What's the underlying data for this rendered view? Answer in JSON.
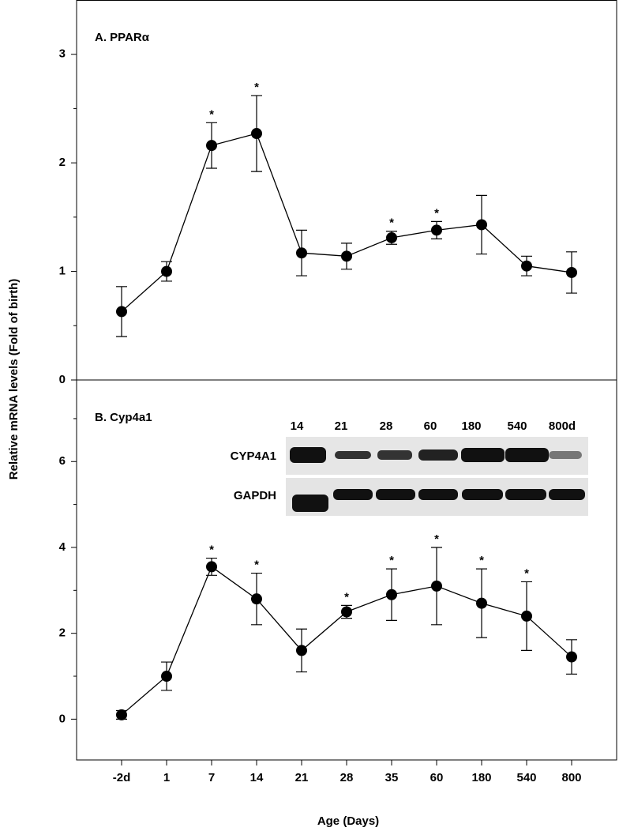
{
  "chart_data": [
    {
      "type": "line",
      "title": "A. PPARα",
      "ylabel": "Relative mRNA levels (Fold of birth)",
      "ylim": [
        0,
        3.5
      ],
      "yticks": [
        0,
        1,
        2,
        3
      ],
      "yminor": [
        0.5,
        1.5,
        2.5
      ],
      "series": [
        {
          "color": "#000000",
          "values": [
            0.63,
            1.0,
            2.16,
            2.27,
            1.17,
            1.14,
            1.31,
            1.38,
            1.43,
            1.05,
            0.99
          ],
          "errors": [
            0.23,
            0.09,
            0.21,
            0.35,
            0.21,
            0.12,
            0.06,
            0.08,
            0.27,
            0.09,
            0.19
          ],
          "labels": [
            null,
            null,
            "*",
            "*",
            null,
            null,
            "*",
            "*",
            null,
            null,
            null
          ]
        }
      ]
    },
    {
      "type": "line",
      "title": "B. Cyp4a1",
      "xlabel": "Age (Days)",
      "categories": [
        "-2d",
        "1",
        "7",
        "14",
        "21",
        "28",
        "35",
        "60",
        "180",
        "540",
        "800"
      ],
      "ylim": [
        -0.95,
        7.9
      ],
      "yticks": [
        0,
        2,
        4,
        6
      ],
      "yminor": [
        1,
        3,
        5,
        7
      ],
      "series": [
        {
          "color": "#000000",
          "values": [
            0.1,
            1.0,
            3.55,
            2.8,
            1.6,
            2.5,
            2.9,
            3.1,
            2.7,
            2.4,
            1.45
          ],
          "errors": [
            0.1,
            0.33,
            0.2,
            0.6,
            0.5,
            0.15,
            0.6,
            0.9,
            0.8,
            0.8,
            0.4
          ],
          "labels": [
            null,
            null,
            "*",
            "*",
            null,
            "*",
            "*",
            "*",
            "*",
            "*",
            null
          ]
        }
      ]
    }
  ],
  "blot": {
    "lanes": [
      "14",
      "21",
      "28",
      "60",
      "180",
      "540",
      "800d"
    ],
    "rows": [
      "CYP4A1",
      "GAPDH"
    ]
  }
}
